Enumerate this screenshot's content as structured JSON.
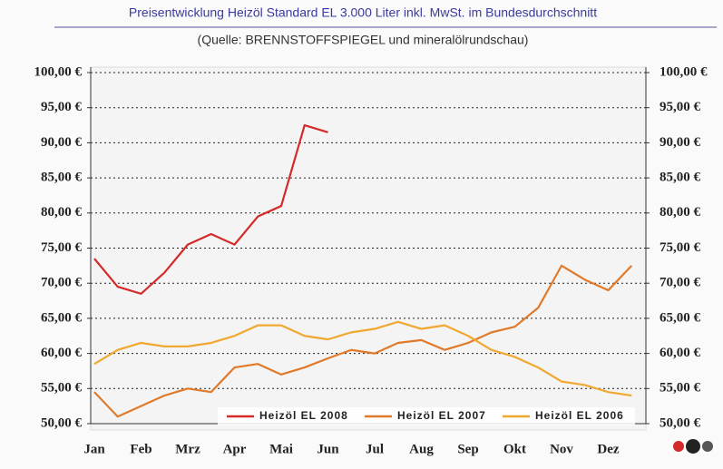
{
  "chart_data": {
    "type": "line",
    "title": "Preisentwicklung Heizöl Standard EL 3.000 Liter inkl. MwSt. im Bundesdurchschnitt",
    "subtitle": "(Quelle: BRENNSTOFFSPIEGEL und mineralölrundschau)",
    "categories": [
      "Jan",
      null,
      "Feb",
      null,
      "Mrz",
      null,
      "Apr",
      null,
      "Mai",
      null,
      "Jun",
      null,
      "Jul",
      null,
      "Aug",
      null,
      "Sep",
      null,
      "Okt",
      null,
      "Nov",
      null,
      "Dez",
      null
    ],
    "series": [
      {
        "name": "Heizöl EL 2008",
        "color": "#d42a2a",
        "values": [
          73.5,
          69.5,
          68.5,
          71.5,
          75.5,
          77,
          75.5,
          79.5,
          81,
          92.5,
          91.5,
          null,
          null,
          null,
          null,
          null,
          null,
          null,
          null,
          null,
          null,
          null,
          null,
          null
        ]
      },
      {
        "name": "Heizöl EL 2007",
        "color": "#e07a2a",
        "values": [
          54.5,
          51,
          52.5,
          54,
          55,
          54.5,
          58,
          58.5,
          57,
          58,
          59.3,
          60.5,
          60,
          61.5,
          61.9,
          60.5,
          61.5,
          63,
          63.8,
          66.5,
          72.5,
          70.5,
          69,
          72.5
        ]
      },
      {
        "name": "Heizöl EL 2006",
        "color": "#f0a830",
        "values": [
          58.5,
          60.5,
          61.5,
          61,
          61,
          61.5,
          62.5,
          64,
          64,
          62.5,
          62,
          63,
          63.5,
          64.5,
          63.5,
          64,
          62.5,
          60.5,
          59.5,
          58,
          56,
          55.5,
          54.5,
          54
        ]
      }
    ],
    "ylim": [
      50,
      100
    ],
    "yticks": [
      {
        "value": 50,
        "label": "50,00 €"
      },
      {
        "value": 55,
        "label": "55,00 €"
      },
      {
        "value": 60,
        "label": "60,00 €"
      },
      {
        "value": 65,
        "label": "65,00 €"
      },
      {
        "value": 70,
        "label": "70,00 €"
      },
      {
        "value": 75,
        "label": "75,00 €"
      },
      {
        "value": 80,
        "label": "80,00 €"
      },
      {
        "value": 85,
        "label": "85,00 €"
      },
      {
        "value": 90,
        "label": "90,00 €"
      },
      {
        "value": 95,
        "label": "95,00 €"
      },
      {
        "value": 100,
        "label": "100,00 €"
      }
    ],
    "y2lim": [
      50,
      100
    ],
    "y2ticks": [
      {
        "value": 50,
        "label": "50,00 €"
      },
      {
        "value": 55,
        "label": "55,00 €"
      },
      {
        "value": 60,
        "label": "60,00 €"
      },
      {
        "value": 65,
        "label": "65,00 €"
      },
      {
        "value": 70,
        "label": "70,00 €"
      },
      {
        "value": 75,
        "label": "75,00 €"
      },
      {
        "value": 80,
        "label": "80,00 €"
      },
      {
        "value": 85,
        "label": "85,00 €"
      },
      {
        "value": 90,
        "label": "90,00 €"
      },
      {
        "value": 95,
        "label": "95,00 €"
      },
      {
        "value": 100,
        "label": "100,00 €"
      }
    ],
    "grid": true,
    "legend": "lower right"
  }
}
